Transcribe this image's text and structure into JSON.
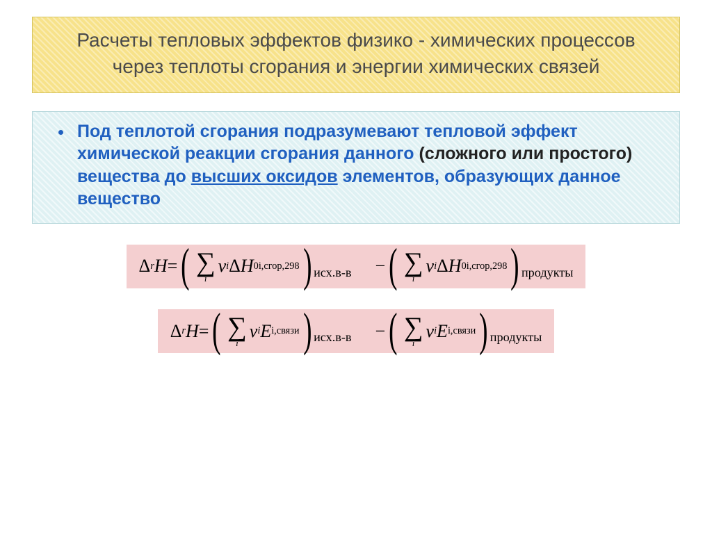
{
  "colors": {
    "title_bg": "#f7e28a",
    "title_border": "#d7c55f",
    "title_text": "#4a4a4a",
    "def_bg": "#dff1f3",
    "def_border": "#b8d8dc",
    "def_text": "#2060c0",
    "def_black": "#222222",
    "formula_bg": "#f4cfd0",
    "page_bg": "#ffffff"
  },
  "title": "Расчеты тепловых эффектов физико - химических процессов через теплоты сгорания и энергии химических связей",
  "definition": {
    "pre": "Под теплотой сгорания подразумевают тепловой эффект химической реакции сгорания данного ",
    "paren": "(сложного или простого)",
    "mid": " вещества до ",
    "ul": "высших оксидов",
    "post": " элементов, образующих данное вещество"
  },
  "formula": {
    "delta_r_H": "Δ",
    "r": "r",
    "H": "H",
    "eq": " = ",
    "minus": "−",
    "nu": "ν",
    "i": "i",
    "E": "E",
    "sum": "∑",
    "sup0": "0",
    "sub1": "i,сгор,298",
    "sub2": "i,связи",
    "label_src": "исх.в-в",
    "label_prod": "продукты"
  }
}
